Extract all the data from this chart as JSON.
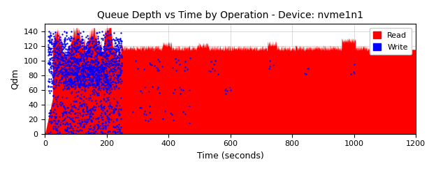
{
  "title": "Queue Depth vs Time by Operation - Device: nvme1n1",
  "xlabel": "Time (seconds)",
  "ylabel": "Qdm",
  "xlim": [
    0,
    1200
  ],
  "ylim": [
    0,
    150
  ],
  "xticks": [
    0,
    200,
    400,
    600,
    800,
    1000,
    1200
  ],
  "yticks": [
    0,
    20,
    40,
    60,
    80,
    100,
    120,
    140
  ],
  "read_color": "#FF0000",
  "write_color": "#0000FF",
  "bg_color": "#ffffff",
  "grid_color": "#cccccc",
  "fig_facecolor": "#ffffff",
  "legend_labels": [
    "Read",
    "Write"
  ],
  "title_fontsize": 10,
  "label_fontsize": 9,
  "tick_fontsize": 8
}
